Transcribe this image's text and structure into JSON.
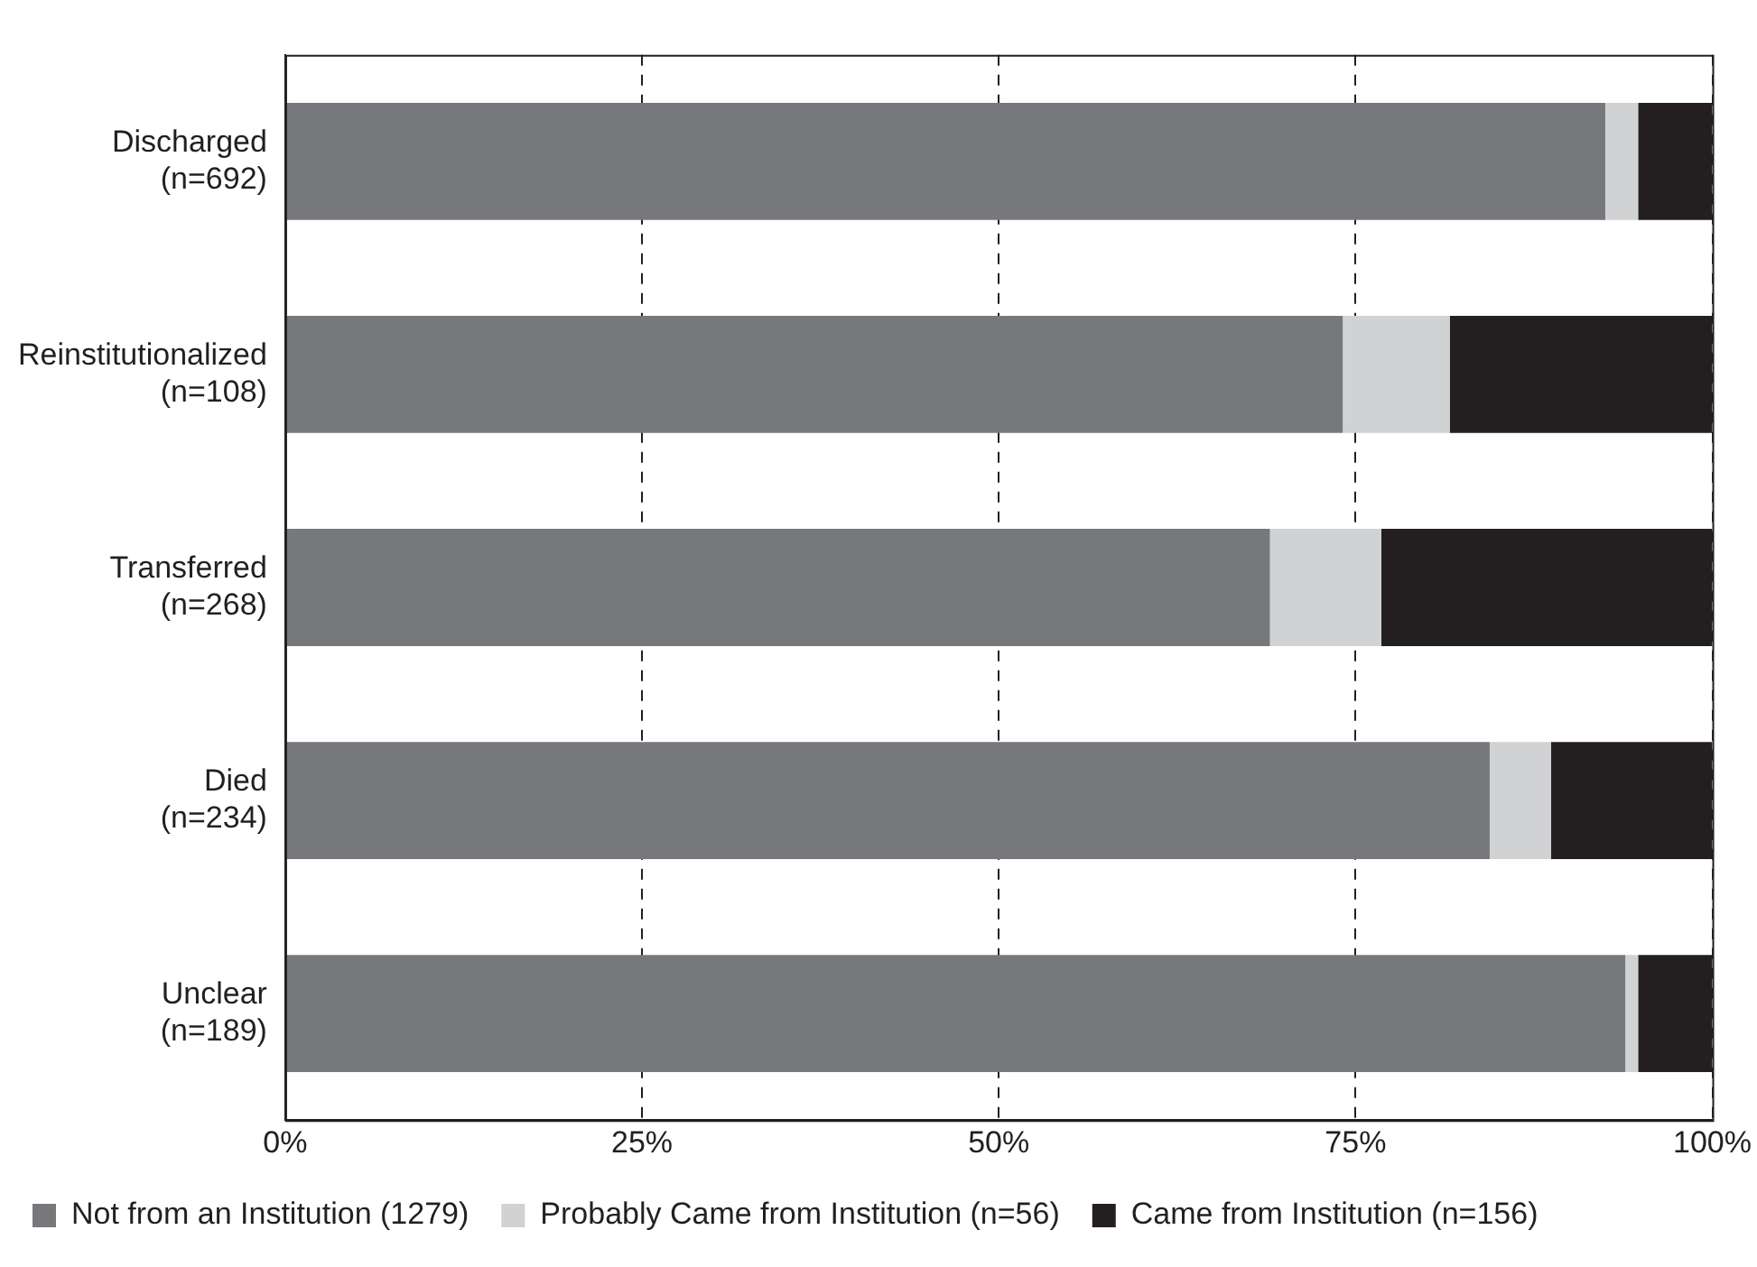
{
  "chart_data": {
    "type": "bar",
    "orientation": "horizontal",
    "stacked": true,
    "categories": [
      "Discharged\n(n=692)",
      "Reinstitutionalized\n(n=108)",
      "Transferred\n(n=268)",
      "Died\n(n=234)",
      "Unclear\n(n=189)"
    ],
    "series": [
      {
        "name": "Not from an Institution (1279)",
        "color": "#77787b",
        "values": [
          92.5,
          74.1,
          69.0,
          84.4,
          93.9
        ]
      },
      {
        "name": "Probably Came from Institution (n=56)",
        "color": "#d1d2d4",
        "values": [
          2.3,
          7.5,
          7.8,
          4.3,
          0.9
        ]
      },
      {
        "name": "Came from Institution (n=156)",
        "color": "#231f20",
        "values": [
          5.2,
          18.4,
          23.2,
          11.3,
          5.2
        ]
      }
    ],
    "xlim": [
      0,
      100
    ],
    "xticks": [
      {
        "value": 0,
        "label": "0%"
      },
      {
        "value": 25,
        "label": "25%"
      },
      {
        "value": 50,
        "label": "50%"
      },
      {
        "value": 75,
        "label": "75%"
      },
      {
        "value": 100,
        "label": "100%"
      }
    ],
    "grid": "x",
    "line_style": "dashed",
    "legend": "bottom"
  }
}
